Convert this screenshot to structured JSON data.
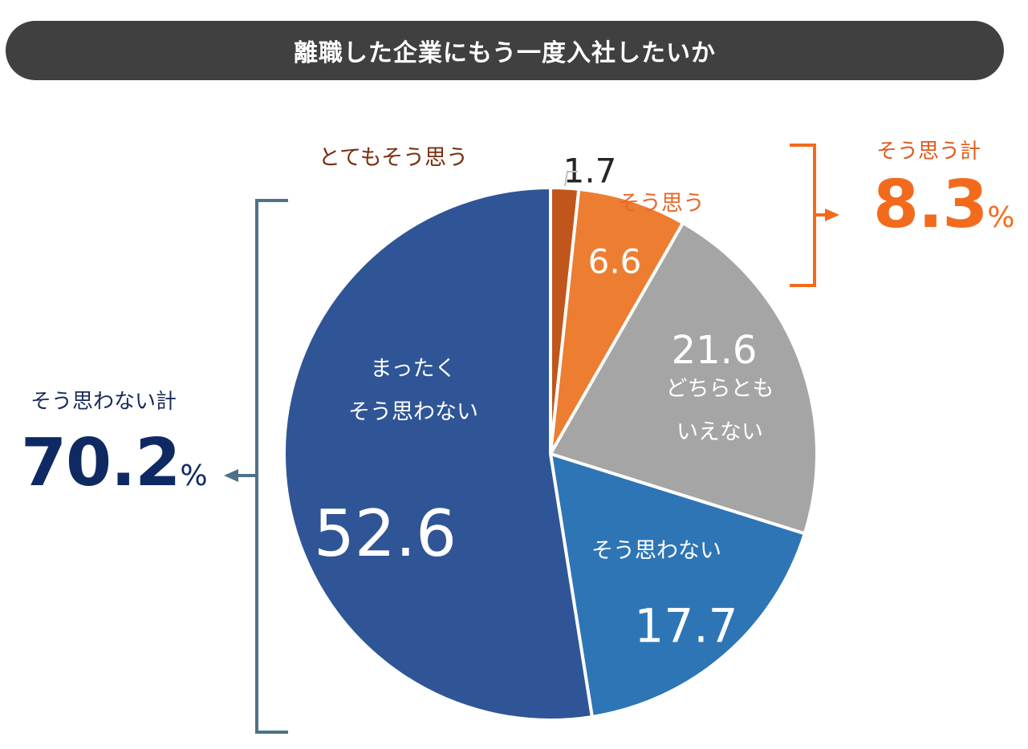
{
  "title": "離職した企業にもう一度入社したいか",
  "chart_data": {
    "type": "pie",
    "slices": [
      {
        "label": "とてもそう思う",
        "value": 1.7,
        "value_text": "1.7",
        "color": "#c0561c"
      },
      {
        "label": "そう思う",
        "value": 6.6,
        "value_text": "6.6",
        "color": "#ed7d31"
      },
      {
        "label": "どちらとも\nいえない",
        "value": 21.6,
        "value_text": "21.6",
        "color": "#a5a5a5"
      },
      {
        "label": "そう思わない",
        "value": 17.7,
        "value_text": "17.7",
        "color": "#2e75b6"
      },
      {
        "label": "まったく\nそう思わない",
        "value": 52.6,
        "value_text": "52.6",
        "color": "#2f5597"
      }
    ],
    "start_angle_deg": 0,
    "direction": "clockwise"
  },
  "summaries": {
    "positive": {
      "label": "そう思う計",
      "value": "8.3",
      "unit": "%",
      "color": "#f26b1d"
    },
    "negative": {
      "label": "そう思わない計",
      "value": "70.2",
      "unit": "%",
      "color": "#0f2a63"
    }
  }
}
